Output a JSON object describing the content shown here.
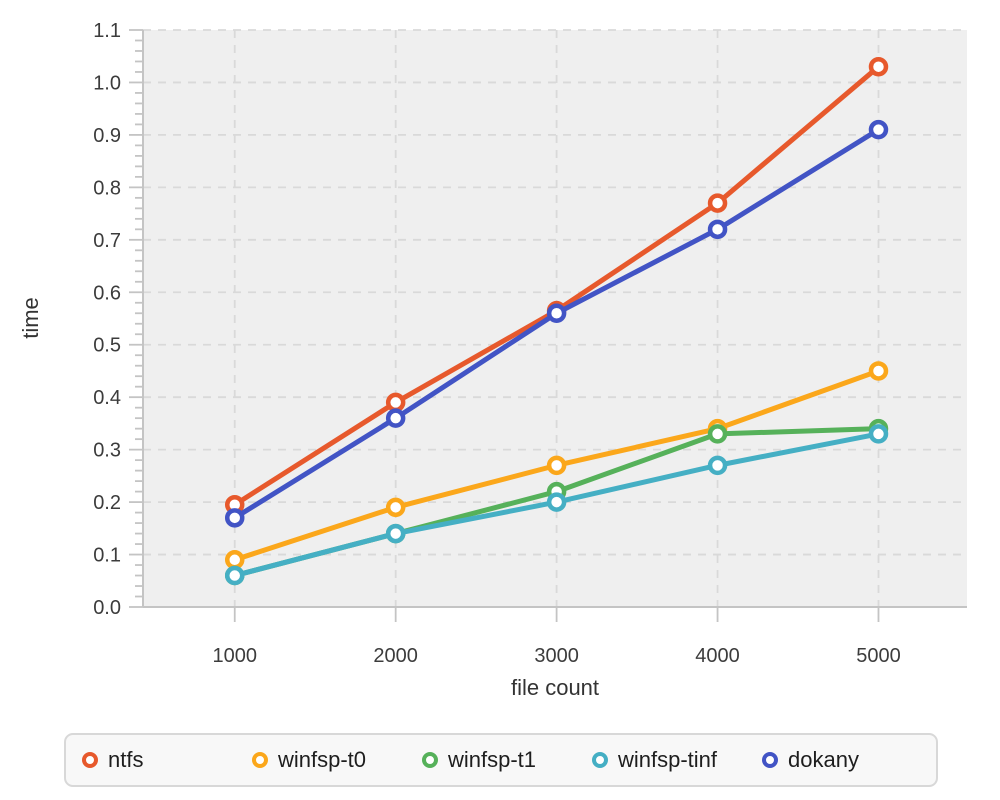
{
  "chart_data": {
    "type": "line",
    "title": "",
    "xlabel": "file count",
    "ylabel": "time",
    "x": [
      1000,
      2000,
      3000,
      4000,
      5000
    ],
    "x_tick_labels": [
      "1000",
      "2000",
      "3000",
      "4000",
      "5000"
    ],
    "y_ticks": [
      0.0,
      0.1,
      0.2,
      0.3,
      0.4,
      0.5,
      0.6,
      0.7,
      0.8,
      0.9,
      1.0,
      1.1
    ],
    "y_tick_labels": [
      "0.0",
      "0.1",
      "0.2",
      "0.3",
      "0.4",
      "0.5",
      "0.6",
      "0.7",
      "0.8",
      "0.9",
      "1.0",
      "1.1"
    ],
    "ylim": [
      0.0,
      1.1
    ],
    "xlim": [
      430,
      5550
    ],
    "y_minor_step": 0.02,
    "grid": "dashed",
    "legend_position": "bottom",
    "series": [
      {
        "name": "ntfs",
        "color": "#E7592C",
        "values": [
          0.195,
          0.39,
          0.565,
          0.77,
          1.03
        ]
      },
      {
        "name": "winfsp-t0",
        "color": "#FBA71B",
        "values": [
          0.09,
          0.19,
          0.27,
          0.34,
          0.45
        ]
      },
      {
        "name": "winfsp-t1",
        "color": "#56B15A",
        "values": [
          0.06,
          0.14,
          0.22,
          0.33,
          0.34
        ]
      },
      {
        "name": "winfsp-tinf",
        "color": "#45AFC4",
        "values": [
          0.06,
          0.14,
          0.2,
          0.27,
          0.33
        ]
      },
      {
        "name": "dokany",
        "color": "#4254C5",
        "values": [
          0.17,
          0.36,
          0.56,
          0.72,
          0.91
        ]
      }
    ],
    "style": {
      "plot_bg": "#efefef",
      "grid_color": "#d9d9d9",
      "axis_color": "#c4c4c4",
      "marker_fill": "#ffffff",
      "tick_text_color": "#3c3c3c",
      "axis_title_color": "#333333",
      "legend_bg": "#f8f8f8",
      "legend_border": "#d8d8d8"
    }
  }
}
